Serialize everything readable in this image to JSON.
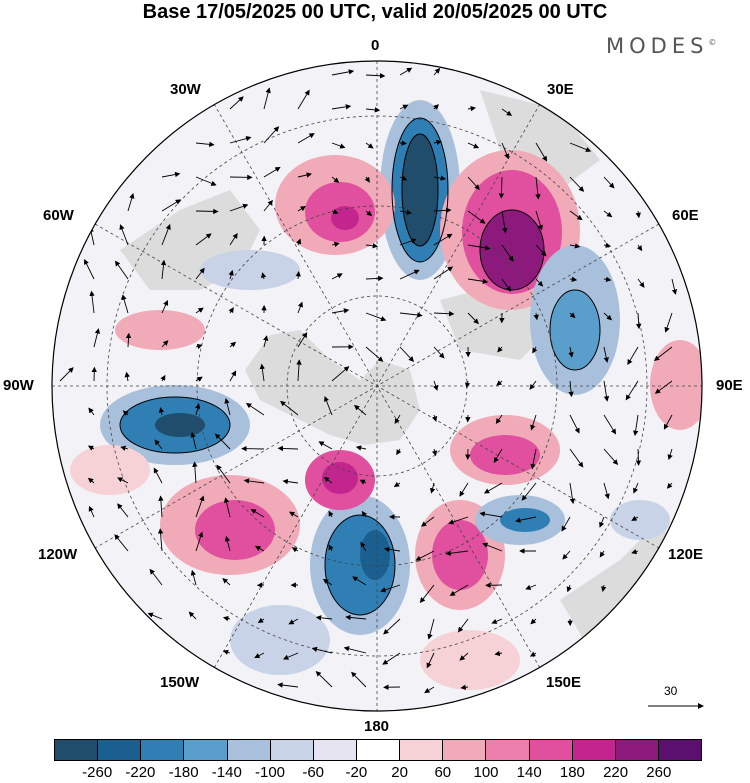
{
  "title": "Base 17/05/2025 00 UTC, valid 20/05/2025 00 UTC",
  "brand": "MODES",
  "brand_mark": "©",
  "longitude_labels": {
    "n0": "0",
    "e30": "30E",
    "e60": "60E",
    "e90": "90E",
    "e120": "120E",
    "e150": "150E",
    "s180": "180",
    "w150": "150W",
    "w120": "120W",
    "w90": "90W",
    "w60": "60W",
    "w30": "30W"
  },
  "reference_vector": {
    "label": "30"
  },
  "colorbar": {
    "colors": [
      "#1f4d6b",
      "#1a5f8f",
      "#2f7fb5",
      "#5a9fcb",
      "#a9c0dd",
      "#c9d3e8",
      "#e6e4f0",
      "#ffffff",
      "#f6d2d6",
      "#f0aab8",
      "#ec7fac",
      "#e0509e",
      "#c2268e",
      "#8c1a7c",
      "#5b1070"
    ],
    "tick_labels": [
      "-260",
      "-220",
      "-180",
      "-140",
      "-100",
      "-60",
      "-20",
      "20",
      "60",
      "100",
      "140",
      "180",
      "220",
      "260"
    ]
  },
  "colors": {
    "land": "#dcdcdc",
    "frame": "#000000"
  }
}
